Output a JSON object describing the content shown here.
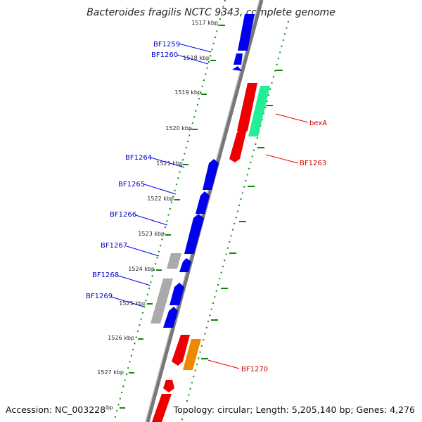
{
  "title": "Bacteroides fragilis NCTC 9343, complete genome",
  "footer": {
    "accession": "Accession: NC_003228",
    "summary": "Topology: circular; Length: 5,205,140 bp; Genes: 4,276"
  },
  "colors": {
    "forward_gene": "#0000ee",
    "reverse_gene": "#ee0000",
    "teal_gene": "#22ee99",
    "orange_gene": "#ee8800",
    "gray_gene": "#aaaaaa",
    "backbone": "#777777",
    "tick_left": "#0a8a0a",
    "tick_right": "#0a8a0a",
    "label_forward": "#0000cc",
    "label_reverse": "#cc0000"
  },
  "ticks": [
    "1517 kbp",
    "1518 kbp",
    "1519 kbp",
    "1520 kbp",
    "1521 kbp",
    "1522 kbp",
    "1523 kbp",
    "1524 kbp",
    "1525 kbp",
    "1526 kbp",
    "1527 kbp",
    "1528 kbp"
  ],
  "forward_labels": [
    "BF1259",
    "BF1260",
    "BF1264",
    "BF1265",
    "BF1266",
    "BF1267",
    "BF1268",
    "BF1269"
  ],
  "reverse_labels": [
    "bexA",
    "BF1263",
    "BF1270"
  ]
}
